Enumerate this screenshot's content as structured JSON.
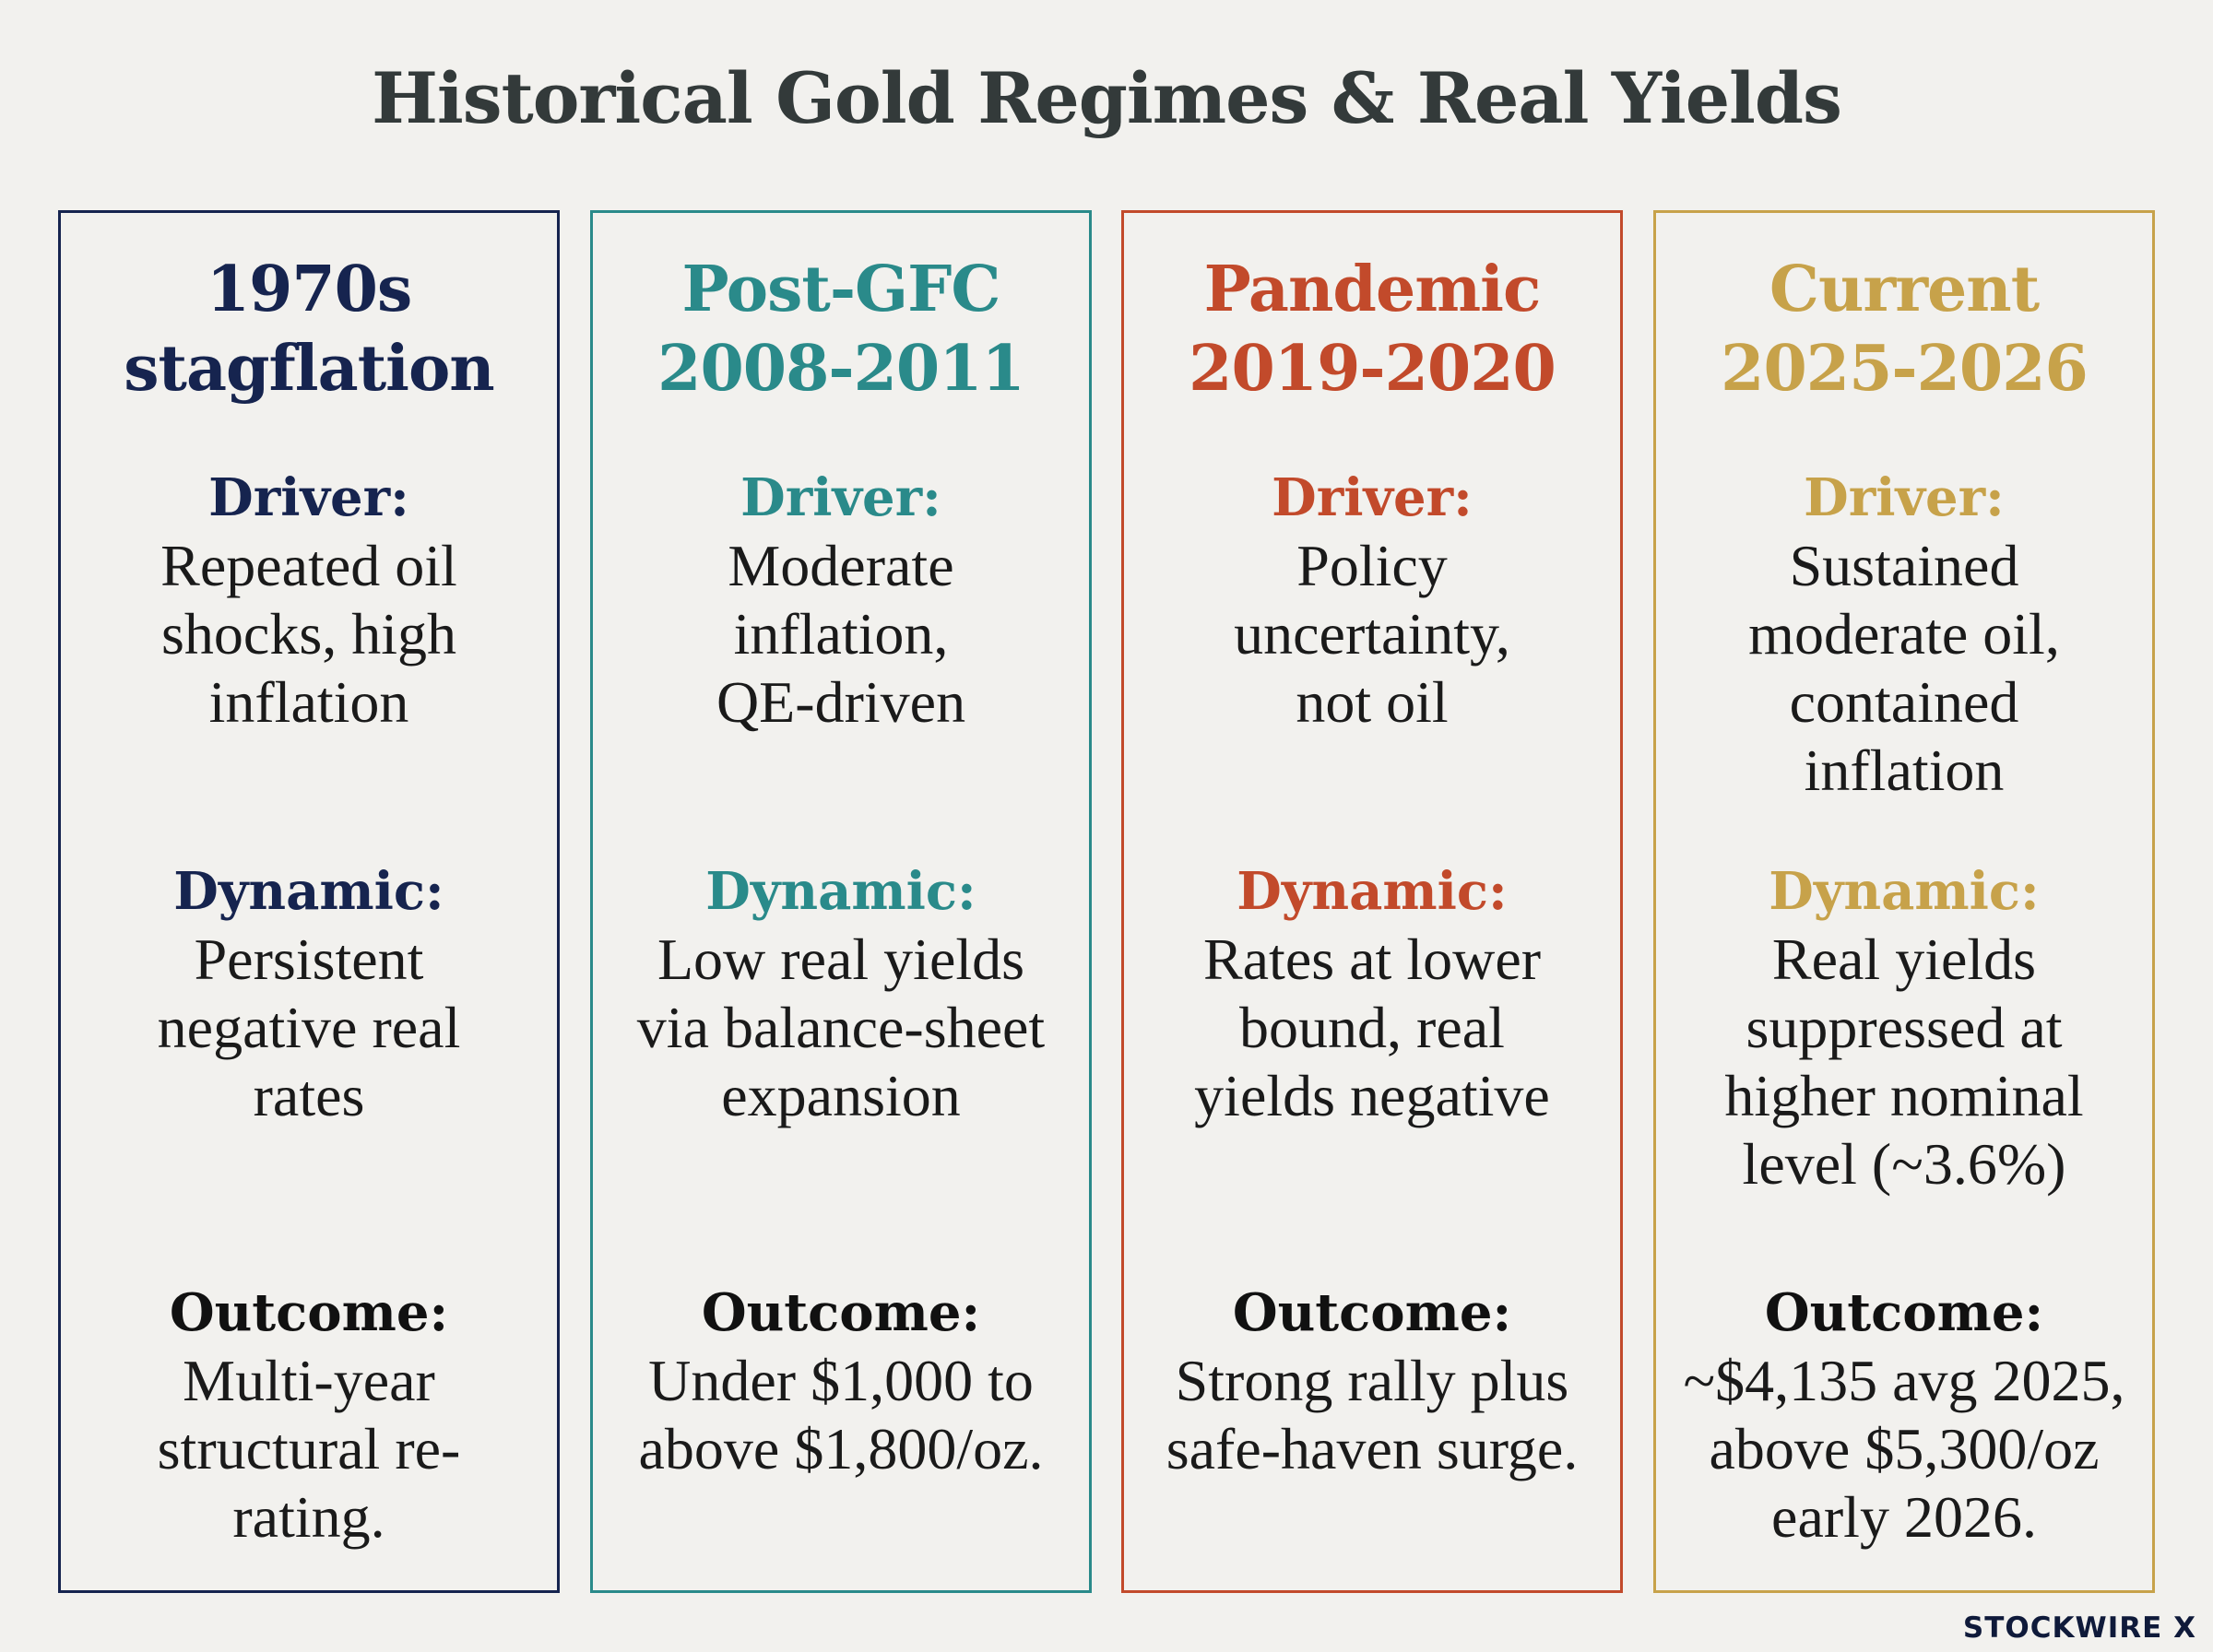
{
  "title": "Historical Gold Regimes & Real Yields",
  "labels": {
    "driver": "Driver:",
    "dynamic": "Dynamic:",
    "outcome": "Outcome:"
  },
  "panels": [
    {
      "heading_line1": "1970s",
      "heading_line2": "stagflation",
      "color": "#16244f",
      "driver": "Repeated oil shocks, high inflation",
      "dynamic": "Persistent negative real rates",
      "outcome": "Multi-year structural re-rating."
    },
    {
      "heading_line1": "Post-GFC",
      "heading_line2": "2008-2011",
      "color": "#2a8a8a",
      "driver": "Moderate inflation, QE-driven",
      "dynamic": "Low real yields via balance-sheet expansion",
      "outcome": "Under $1,000 to above $1,800/oz."
    },
    {
      "heading_line1": "Pandemic",
      "heading_line2": "2019-2020",
      "color": "#c24a2b",
      "driver": "Policy uncertainty, not oil",
      "dynamic": "Rates at lower bound, real yields negative",
      "outcome": "Strong rally plus safe-haven surge."
    },
    {
      "heading_line1": "Current",
      "heading_line2": "2025-2026",
      "color": "#c7a24a",
      "driver": "Sustained moderate oil, contained inflation",
      "dynamic": "Real yields suppressed at higher nominal level (~3.6%)",
      "outcome": "~$4,135 avg 2025, above $5,300/oz early 2026."
    }
  ],
  "brand": "STOCKWIRE X"
}
